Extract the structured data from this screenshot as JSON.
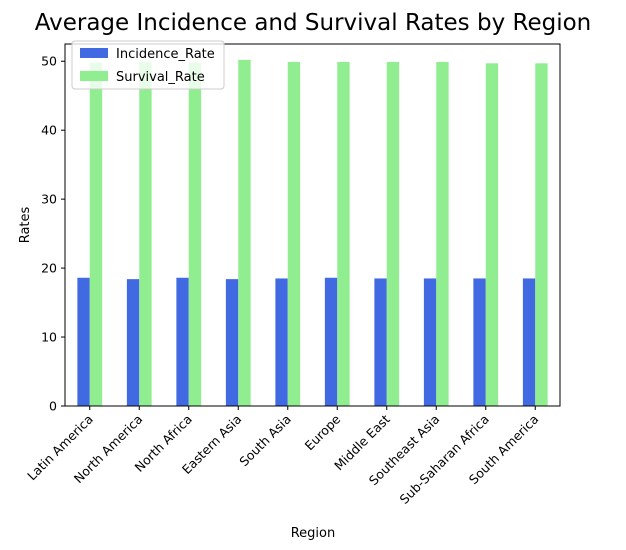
{
  "chart_data": {
    "type": "bar",
    "title": "Average Incidence and Survival Rates by Region",
    "xlabel": "Region",
    "ylabel": "Rates",
    "categories": [
      "Latin America",
      "North America",
      "North Africa",
      "Eastern Asia",
      "South Asia",
      "Europe",
      "Middle East",
      "Southeast Asia",
      "Sub-Saharan Africa",
      "South America"
    ],
    "series": [
      {
        "name": "Incidence_Rate",
        "color": "#4169e1",
        "values": [
          18.6,
          18.4,
          18.6,
          18.4,
          18.5,
          18.6,
          18.5,
          18.5,
          18.5,
          18.5
        ]
      },
      {
        "name": "Survival_Rate",
        "color": "#90ee90",
        "values": [
          49.8,
          49.9,
          49.8,
          50.2,
          49.9,
          49.9,
          49.9,
          49.9,
          49.7,
          49.7
        ]
      }
    ],
    "ylim": [
      0,
      52.5
    ],
    "yticks": [
      0,
      10,
      20,
      30,
      40,
      50
    ],
    "grid": false,
    "legend_position": "top-left"
  }
}
